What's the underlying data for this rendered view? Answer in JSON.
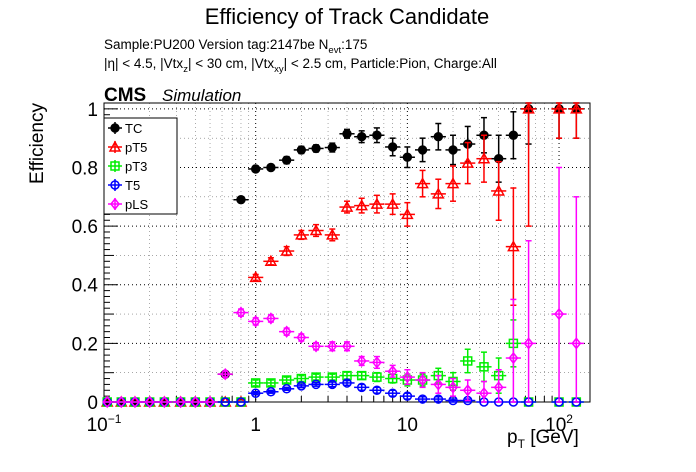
{
  "header": {
    "title": "Efficiency of Track Candidate",
    "sample_line_main": "Sample:PU200   Version tag:2147be  N",
    "sample_line_sub": "evt",
    "sample_line_tail": ":175",
    "cuts_parts": [
      "|η| < 4.5, |Vtx",
      "z",
      "| < 30 cm, |Vtx",
      "xy",
      "| < 2.5 cm, Particle:Pion, Charge:All"
    ]
  },
  "cms_label": "CMS",
  "simulation_label": "Simulation",
  "chart_data": {
    "type": "scatter",
    "title": "Efficiency of Track Candidate",
    "xlabel": "p_T [GeV]",
    "xlabel_main": "p",
    "xlabel_sub": "T",
    "xlabel_tail": " [GeV]",
    "ylabel": "Efficiency",
    "xscale": "log",
    "xlim": [
      0.1,
      160
    ],
    "ylim": [
      0,
      1.02
    ],
    "grid": true,
    "legend_position": "top-left",
    "x_ticks": [
      {
        "value": 0.1,
        "base": "10",
        "exp": "−1"
      },
      {
        "value": 1,
        "base": "1",
        "exp": ""
      },
      {
        "value": 10,
        "base": "10",
        "exp": ""
      },
      {
        "value": 100,
        "base": "10",
        "exp": "2"
      }
    ],
    "y_ticks": [
      {
        "value": 0,
        "label": "0"
      },
      {
        "value": 0.2,
        "label": "0.2"
      },
      {
        "value": 0.4,
        "label": "0.4"
      },
      {
        "value": 0.6,
        "label": "0.6"
      },
      {
        "value": 0.8,
        "label": "0.8"
      },
      {
        "value": 1,
        "label": "1"
      }
    ],
    "series": [
      {
        "name": "TC",
        "color": "#000000",
        "marker": "filled-circle",
        "points": [
          [
            0.105,
            0,
            0
          ],
          [
            0.13,
            0,
            0
          ],
          [
            0.16,
            0,
            0
          ],
          [
            0.2,
            0,
            0
          ],
          [
            0.25,
            0,
            0
          ],
          [
            0.32,
            0,
            0
          ],
          [
            0.4,
            0,
            0
          ],
          [
            0.5,
            0,
            0
          ],
          [
            0.63,
            0.095,
            0.01
          ],
          [
            0.8,
            0.69,
            0.01
          ],
          [
            1.0,
            0.795,
            0.01
          ],
          [
            1.26,
            0.8,
            0.01
          ],
          [
            1.6,
            0.825,
            0.012
          ],
          [
            2.0,
            0.86,
            0.012
          ],
          [
            2.5,
            0.865,
            0.012
          ],
          [
            3.2,
            0.868,
            0.015
          ],
          [
            4.0,
            0.915,
            0.015
          ],
          [
            5.0,
            0.905,
            0.02
          ],
          [
            6.3,
            0.91,
            0.025
          ],
          [
            8.0,
            0.87,
            0.03
          ],
          [
            10.0,
            0.835,
            0.035
          ],
          [
            12.6,
            0.86,
            0.04
          ],
          [
            16.0,
            0.905,
            0.045
          ],
          [
            20.0,
            0.86,
            0.05
          ],
          [
            25.0,
            0.88,
            0.06
          ],
          [
            32.0,
            0.91,
            0.06
          ],
          [
            40.0,
            0.83,
            0.08
          ],
          [
            50.0,
            0.91,
            0.08
          ],
          [
            63.0,
            1.0,
            0.12
          ],
          [
            100.0,
            1.0,
            0.1
          ],
          [
            130.0,
            1.0,
            0.1
          ]
        ]
      },
      {
        "name": "pT5",
        "color": "#ff0000",
        "marker": "open-triangle",
        "points": [
          [
            0.105,
            0,
            0
          ],
          [
            0.13,
            0,
            0
          ],
          [
            0.16,
            0,
            0
          ],
          [
            0.2,
            0,
            0
          ],
          [
            0.25,
            0,
            0
          ],
          [
            0.32,
            0,
            0
          ],
          [
            0.4,
            0,
            0
          ],
          [
            0.5,
            0,
            0
          ],
          [
            0.63,
            0,
            0
          ],
          [
            0.8,
            0,
            0
          ],
          [
            1.0,
            0.425,
            0.01
          ],
          [
            1.26,
            0.48,
            0.012
          ],
          [
            1.6,
            0.515,
            0.015
          ],
          [
            2.0,
            0.57,
            0.015
          ],
          [
            2.5,
            0.585,
            0.02
          ],
          [
            3.2,
            0.57,
            0.02
          ],
          [
            4.0,
            0.665,
            0.02
          ],
          [
            5.0,
            0.67,
            0.025
          ],
          [
            6.3,
            0.675,
            0.03
          ],
          [
            8.0,
            0.675,
            0.035
          ],
          [
            10.0,
            0.64,
            0.04
          ],
          [
            12.6,
            0.745,
            0.045
          ],
          [
            16.0,
            0.71,
            0.05
          ],
          [
            20.0,
            0.745,
            0.06
          ],
          [
            25.0,
            0.815,
            0.07
          ],
          [
            32.0,
            0.83,
            0.08
          ],
          [
            40.0,
            0.72,
            0.1
          ],
          [
            50.0,
            0.53,
            0.2
          ],
          [
            63.0,
            1.0,
            0.4
          ],
          [
            100.0,
            1.0,
            0.1
          ],
          [
            130.0,
            1.0,
            0.1
          ]
        ]
      },
      {
        "name": "pT3",
        "color": "#00ee00",
        "marker": "open-square",
        "points": [
          [
            0.105,
            0,
            0
          ],
          [
            0.13,
            0,
            0
          ],
          [
            0.16,
            0,
            0
          ],
          [
            0.2,
            0,
            0
          ],
          [
            0.25,
            0,
            0
          ],
          [
            0.32,
            0,
            0
          ],
          [
            0.4,
            0,
            0
          ],
          [
            0.5,
            0,
            0
          ],
          [
            0.63,
            0,
            0
          ],
          [
            0.8,
            0,
            0
          ],
          [
            1.0,
            0.065,
            0.01
          ],
          [
            1.26,
            0.065,
            0.01
          ],
          [
            1.6,
            0.075,
            0.01
          ],
          [
            2.0,
            0.08,
            0.01
          ],
          [
            2.5,
            0.085,
            0.01
          ],
          [
            3.2,
            0.085,
            0.01
          ],
          [
            4.0,
            0.09,
            0.012
          ],
          [
            5.0,
            0.09,
            0.012
          ],
          [
            6.3,
            0.085,
            0.015
          ],
          [
            8.0,
            0.08,
            0.015
          ],
          [
            10.0,
            0.075,
            0.02
          ],
          [
            12.6,
            0.075,
            0.02
          ],
          [
            16.0,
            0.09,
            0.025
          ],
          [
            20.0,
            0.07,
            0.03
          ],
          [
            25.0,
            0.14,
            0.04
          ],
          [
            32.0,
            0.12,
            0.05
          ],
          [
            40.0,
            0.09,
            0.06
          ],
          [
            50.0,
            0.2,
            0.08
          ],
          [
            63.0,
            0,
            0
          ],
          [
            100.0,
            0,
            0
          ],
          [
            130.0,
            0,
            0
          ]
        ]
      },
      {
        "name": "T5",
        "color": "#0000ff",
        "marker": "open-circle",
        "points": [
          [
            0.105,
            0,
            0
          ],
          [
            0.13,
            0,
            0
          ],
          [
            0.16,
            0,
            0
          ],
          [
            0.2,
            0,
            0
          ],
          [
            0.25,
            0,
            0
          ],
          [
            0.32,
            0,
            0
          ],
          [
            0.4,
            0,
            0
          ],
          [
            0.5,
            0,
            0
          ],
          [
            0.63,
            0,
            0
          ],
          [
            0.8,
            0,
            0
          ],
          [
            1.0,
            0.03,
            0.005
          ],
          [
            1.26,
            0.035,
            0.005
          ],
          [
            1.6,
            0.045,
            0.005
          ],
          [
            2.0,
            0.055,
            0.006
          ],
          [
            2.5,
            0.06,
            0.006
          ],
          [
            3.2,
            0.06,
            0.008
          ],
          [
            4.0,
            0.065,
            0.008
          ],
          [
            5.0,
            0.05,
            0.01
          ],
          [
            6.3,
            0.04,
            0.01
          ],
          [
            8.0,
            0.03,
            0.01
          ],
          [
            10.0,
            0.02,
            0.01
          ],
          [
            12.6,
            0.01,
            0.008
          ],
          [
            16.0,
            0.01,
            0.008
          ],
          [
            20.0,
            0.005,
            0.005
          ],
          [
            25.0,
            0.005,
            0.005
          ],
          [
            32.0,
            0,
            0
          ],
          [
            40.0,
            0,
            0
          ],
          [
            50.0,
            0,
            0
          ],
          [
            63.0,
            0,
            0
          ],
          [
            100.0,
            0,
            0
          ],
          [
            130.0,
            0,
            0
          ]
        ]
      },
      {
        "name": "pLS",
        "color": "#ff00ff",
        "marker": "open-diamond",
        "points": [
          [
            0.105,
            0,
            0
          ],
          [
            0.13,
            0,
            0
          ],
          [
            0.16,
            0,
            0
          ],
          [
            0.2,
            0,
            0
          ],
          [
            0.25,
            0,
            0
          ],
          [
            0.32,
            0,
            0
          ],
          [
            0.4,
            0,
            0
          ],
          [
            0.5,
            0,
            0
          ],
          [
            0.63,
            0.095,
            0.01
          ],
          [
            0.8,
            0.305,
            0.012
          ],
          [
            1.0,
            0.275,
            0.012
          ],
          [
            1.26,
            0.285,
            0.012
          ],
          [
            1.6,
            0.24,
            0.012
          ],
          [
            2.0,
            0.22,
            0.012
          ],
          [
            2.5,
            0.19,
            0.012
          ],
          [
            3.2,
            0.19,
            0.015
          ],
          [
            4.0,
            0.19,
            0.015
          ],
          [
            5.0,
            0.14,
            0.015
          ],
          [
            6.3,
            0.135,
            0.02
          ],
          [
            8.0,
            0.105,
            0.02
          ],
          [
            10.0,
            0.085,
            0.025
          ],
          [
            12.6,
            0.075,
            0.025
          ],
          [
            16.0,
            0.06,
            0.03
          ],
          [
            20.0,
            0.05,
            0.03
          ],
          [
            25.0,
            0.04,
            0.035
          ],
          [
            32.0,
            0.03,
            0.04
          ],
          [
            40.0,
            0.05,
            0.06
          ],
          [
            50.0,
            0.15,
            0.2
          ],
          [
            63.0,
            0.2,
            0.35
          ],
          [
            100.0,
            0.3,
            0.5
          ],
          [
            130.0,
            0.2,
            0.5
          ]
        ]
      }
    ]
  }
}
